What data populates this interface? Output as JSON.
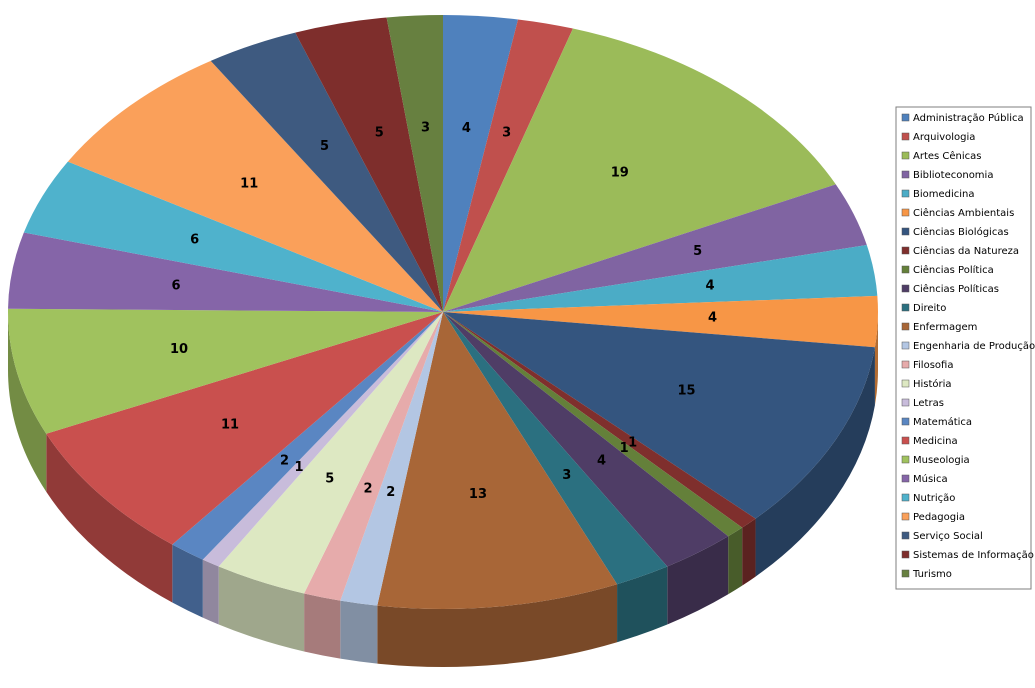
{
  "chart_data": {
    "type": "pie3d",
    "categories": [
      "Administração Pública",
      "Arquivologia",
      "Artes Cênicas",
      "Biblioteconomia",
      "Biomedicina",
      "Ciências Ambientais",
      "Ciências Biológicas",
      "Ciências da Natureza",
      "Ciências Política",
      "Ciências Políticas",
      "Direito",
      "Enfermagem",
      "Engenharia de Produção",
      "Filosofia",
      "História",
      "Letras",
      "Matemática",
      "Medicina",
      "Museologia",
      "Música",
      "Nutrição",
      "Pedagogia",
      "Serviço Social",
      "Sistemas de Informação",
      "Turismo"
    ],
    "values": [
      4,
      3,
      19,
      5,
      4,
      4,
      15,
      1,
      1,
      4,
      3,
      13,
      2,
      2,
      5,
      1,
      2,
      11,
      10,
      6,
      6,
      11,
      5,
      5,
      3
    ],
    "colors": [
      "#4F81BD",
      "#C0504D",
      "#9BBB59",
      "#8064A2",
      "#4BACC6",
      "#F79646",
      "#34557F",
      "#7F2F2D",
      "#64803A",
      "#4F3D66",
      "#2B7080",
      "#A86637",
      "#B3C6E3",
      "#E6ABAB",
      "#DDE8C2",
      "#C8BCDB",
      "#5A86C2",
      "#C9504E",
      "#A0C25E",
      "#8565A8",
      "#4FB2CC",
      "#FAA05A",
      "#3E5A80",
      "#7E2E2C",
      "#678040"
    ],
    "legend": "right"
  }
}
